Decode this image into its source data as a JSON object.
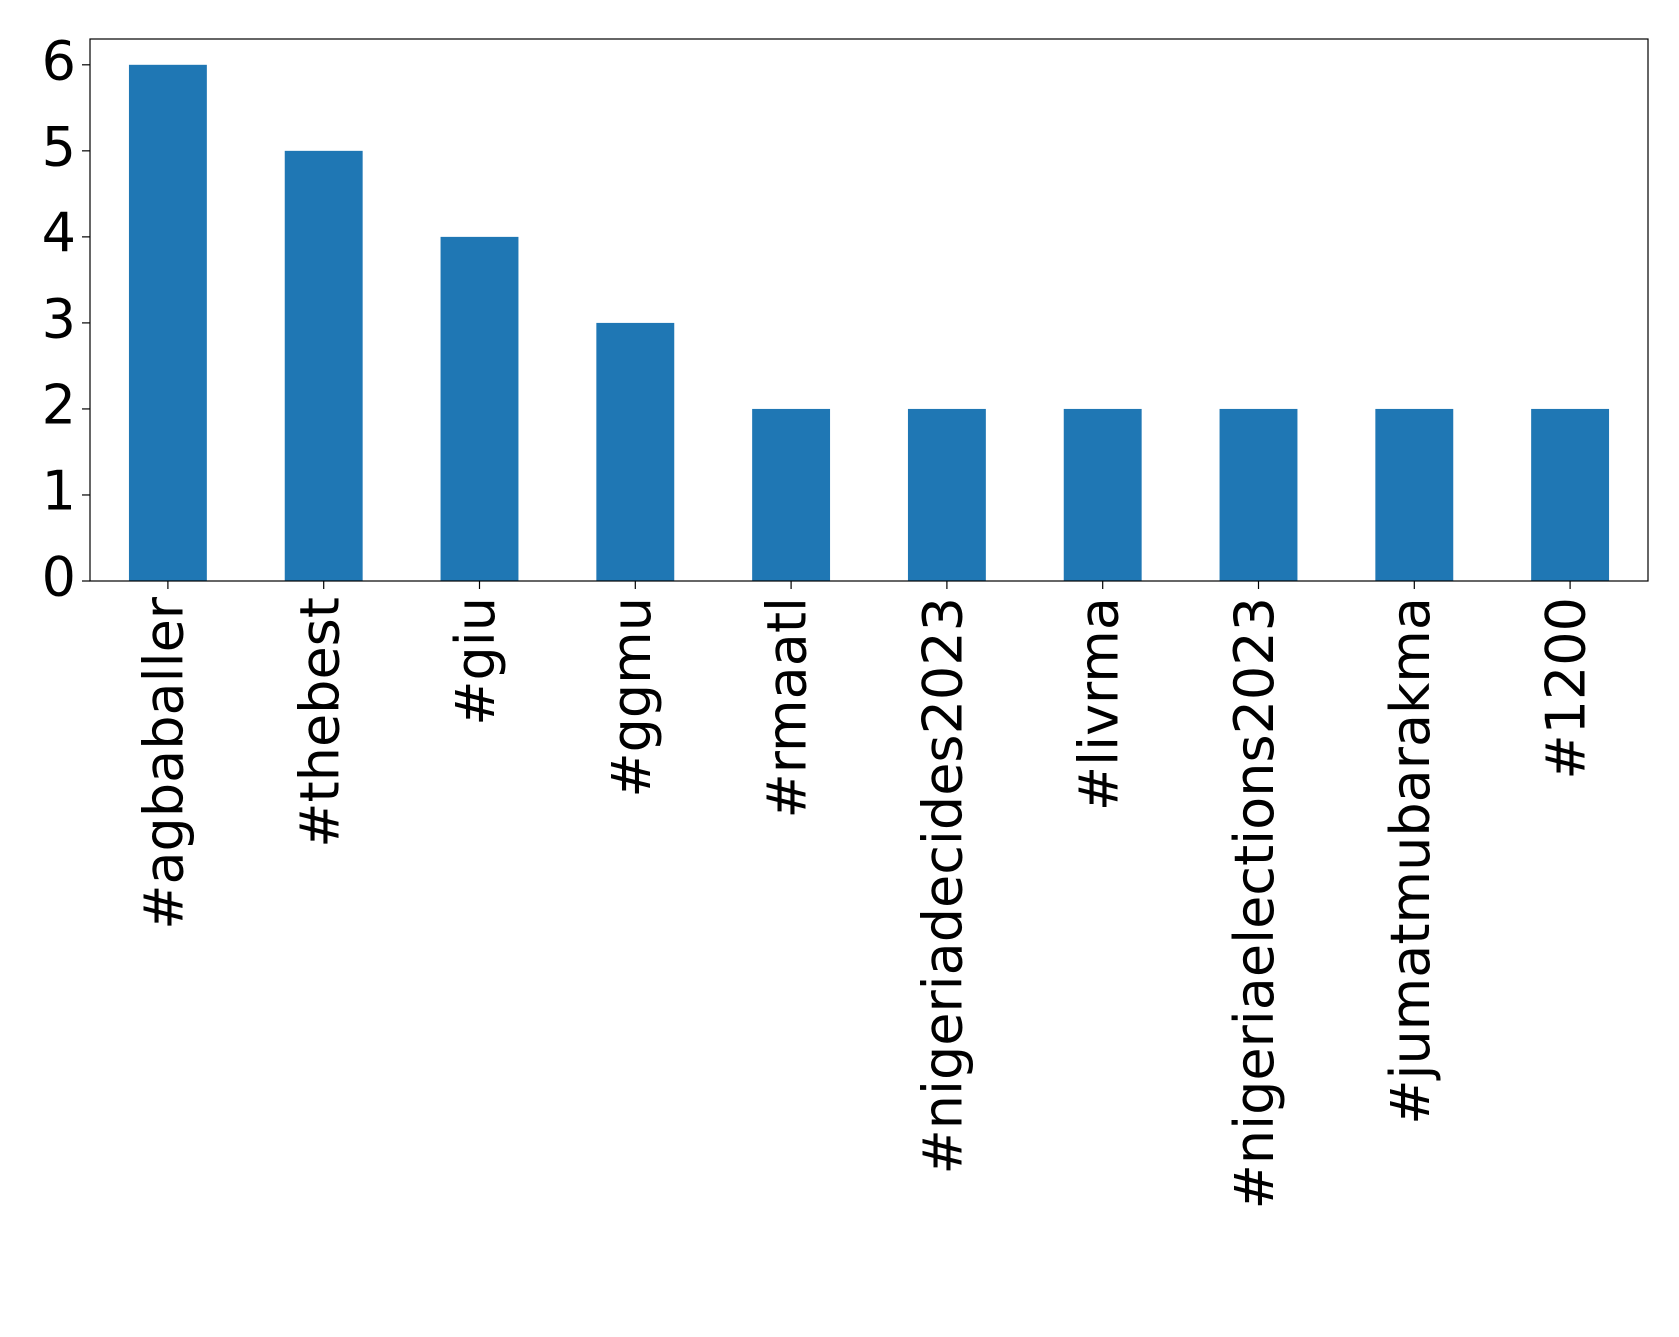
{
  "chart_data": {
    "type": "bar",
    "categories": [
      "#agbaballer",
      "#thebest",
      "#giu",
      "#ggmu",
      "#rmaatl",
      "#nigeriadecides2023",
      "#livrma",
      "#nigeriaelections2023",
      "#jumatmubarakma",
      "#1200"
    ],
    "values": [
      6,
      5,
      4,
      3,
      2,
      2,
      2,
      2,
      2,
      2
    ],
    "color": "#1f77b4",
    "ylim": [
      0,
      6.3
    ],
    "yticks": [
      0,
      1,
      2,
      3,
      4,
      5,
      6
    ],
    "grid": false
  }
}
